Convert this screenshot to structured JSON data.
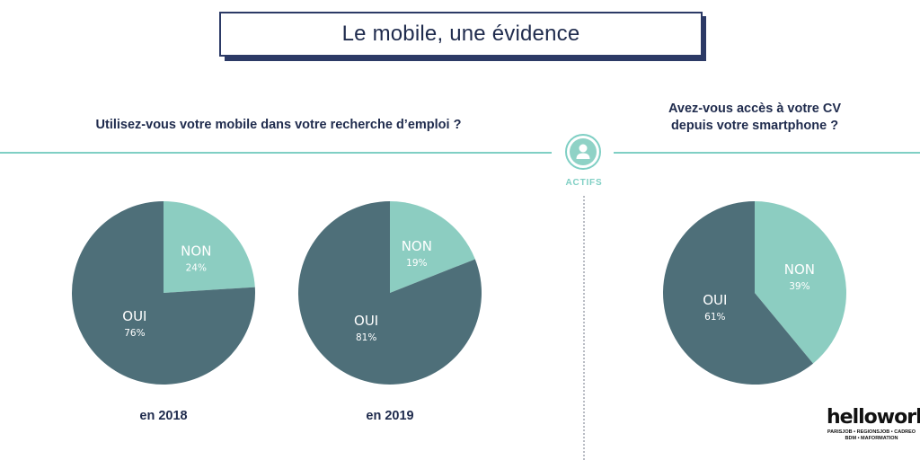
{
  "title": "Le mobile, une évidence",
  "questions": {
    "left": "Utilisez-vous votre mobile dans votre recherche d’emploi ?",
    "right": "Avez-vous accès à votre CV\ndepuis votre smartphone ?"
  },
  "segment_label": "ACTIFS",
  "icon": "user-icon",
  "colors": {
    "oui": "#4e6f79",
    "non": "#8ccdc1",
    "accent": "#7fcfc4",
    "text": "#1f2b4d"
  },
  "chart_data": [
    {
      "type": "pie",
      "caption": "en 2018",
      "slices": [
        {
          "label": "NON",
          "value": 24,
          "display": "24%"
        },
        {
          "label": "OUI",
          "value": 76,
          "display": "76%"
        }
      ]
    },
    {
      "type": "pie",
      "caption": "en 2019",
      "slices": [
        {
          "label": "NON",
          "value": 19,
          "display": "19%"
        },
        {
          "label": "OUI",
          "value": 81,
          "display": "81%"
        }
      ]
    },
    {
      "type": "pie",
      "caption": "",
      "slices": [
        {
          "label": "NON",
          "value": 39,
          "display": "39%"
        },
        {
          "label": "OUI",
          "value": 61,
          "display": "61%"
        }
      ]
    }
  ],
  "logo": {
    "name": "hellowork",
    "subtitle": "PARISJOB • REGIONSJOB • CADREO\nBDM • MAFORMATION"
  }
}
